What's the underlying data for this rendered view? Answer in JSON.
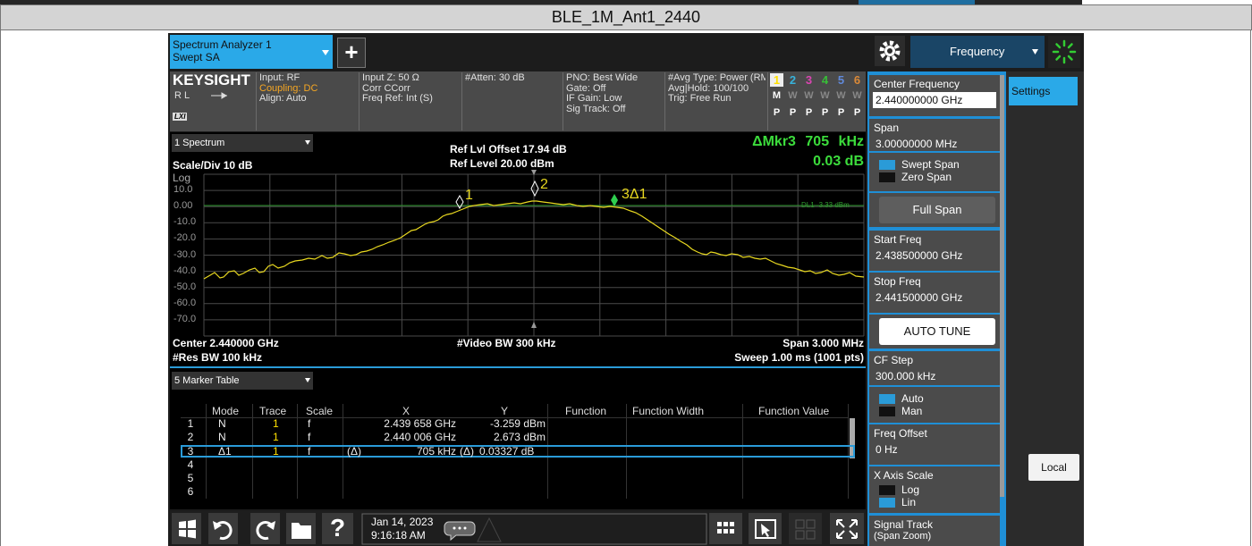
{
  "title": "BLE_1M_Ant1_2440",
  "tab": {
    "name": "Spectrum Analyzer 1",
    "mode": "Swept SA"
  },
  "add_button": "+",
  "menu": "Frequency",
  "status": {
    "brand": "KEYSIGHT",
    "ref": "RL",
    "lxi": "LXI",
    "columns": [
      [
        "Input: RF",
        "Coupling: DC",
        "Align: Auto"
      ],
      [
        "Input Z: 50 Ω",
        "Corr CCorr",
        "Freq Ref: Int (S)"
      ],
      [
        "#Atten: 30 dB"
      ],
      [
        "PNO: Best Wide",
        "Gate: Off",
        "IF Gain: Low",
        "Sig Track: Off"
      ],
      [
        "#Avg Type: Power (RMS",
        "Avg|Hold: 100/100",
        "Trig: Free Run"
      ]
    ],
    "traces": [
      "1",
      "2",
      "3",
      "4",
      "5",
      "6"
    ],
    "trace_types": [
      "M",
      "W",
      "W",
      "W",
      "W",
      "W"
    ],
    "detectors": [
      "P",
      "P",
      "P",
      "P",
      "P",
      "P"
    ]
  },
  "spectrum": {
    "window": "1 Spectrum",
    "scale": "Scale/Div 10 dB",
    "scale_type": "Log",
    "ref_offset": "Ref Lvl Offset 17.94 dB",
    "ref_level": "Ref Level 20.00 dBm",
    "marker_readout": "ΔMkr3",
    "marker_x": "705 kHz",
    "marker_y": "0.03 dB",
    "y_labels": [
      "10.0",
      "0.00",
      "-10.0",
      "-20.0",
      "-30.0",
      "-40.0",
      "-50.0",
      "-60.0",
      "-70.0"
    ],
    "display_line": "DL1 -3.33 dBm",
    "markers": [
      "1",
      "2",
      "3Δ1"
    ],
    "center": "Center 2.440000 GHz",
    "res_bw": "#Res BW 100 kHz",
    "video_bw": "#Video BW 300 kHz",
    "span": "Span 3.000 MHz",
    "sweep": "Sweep 1.00 ms (1001 pts)"
  },
  "marker_table": {
    "window": "5 Marker Table",
    "columns": [
      "Mode",
      "Trace",
      "Scale",
      "X",
      "Y",
      "Function",
      "Function Width",
      "Function Value"
    ],
    "rows": [
      {
        "n": "1",
        "mode": "N",
        "trace": "1",
        "scale": "f",
        "x": "2.439 658 GHz",
        "y": "-3.259 dBm"
      },
      {
        "n": "2",
        "mode": "N",
        "trace": "1",
        "scale": "f",
        "x": "2.440 006 GHz",
        "y": "2.673 dBm"
      },
      {
        "n": "3",
        "mode": "Δ1",
        "trace": "1",
        "scale": "f",
        "x_prefix": "(Δ)",
        "x": "705 kHz",
        "y_prefix": "(Δ)",
        "y": "0.03327 dB"
      },
      {
        "n": "4"
      },
      {
        "n": "5"
      },
      {
        "n": "6"
      }
    ]
  },
  "panel": {
    "items": [
      {
        "label": "Center Frequency",
        "value": "2.440000000 GHz",
        "active": true
      },
      {
        "label": "Span",
        "value": "3.00000000 MHz"
      },
      {
        "options": [
          "Swept Span",
          "Zero Span"
        ],
        "selected": 0
      },
      {
        "button": "Full Span"
      },
      {
        "label": "Start Freq",
        "value": "2.438500000 GHz"
      },
      {
        "label": "Stop Freq",
        "value": "2.441500000 GHz"
      },
      {
        "button": "AUTO TUNE"
      },
      {
        "label": "CF Step",
        "value": "300.000 kHz"
      },
      {
        "options": [
          "Auto",
          "Man"
        ],
        "selected": 0
      },
      {
        "label": "Freq Offset",
        "value": "0 Hz"
      },
      {
        "label": "X Axis Scale",
        "options": [
          "Log",
          "Lin"
        ],
        "selected": 1
      },
      {
        "label": "Signal Track",
        "sub": "(Span Zoom)"
      }
    ]
  },
  "settings_tab": "Settings",
  "local": "Local",
  "taskbar": {
    "help": "?",
    "date": "Jan 14, 2023",
    "time": "9:16:18 AM"
  }
}
